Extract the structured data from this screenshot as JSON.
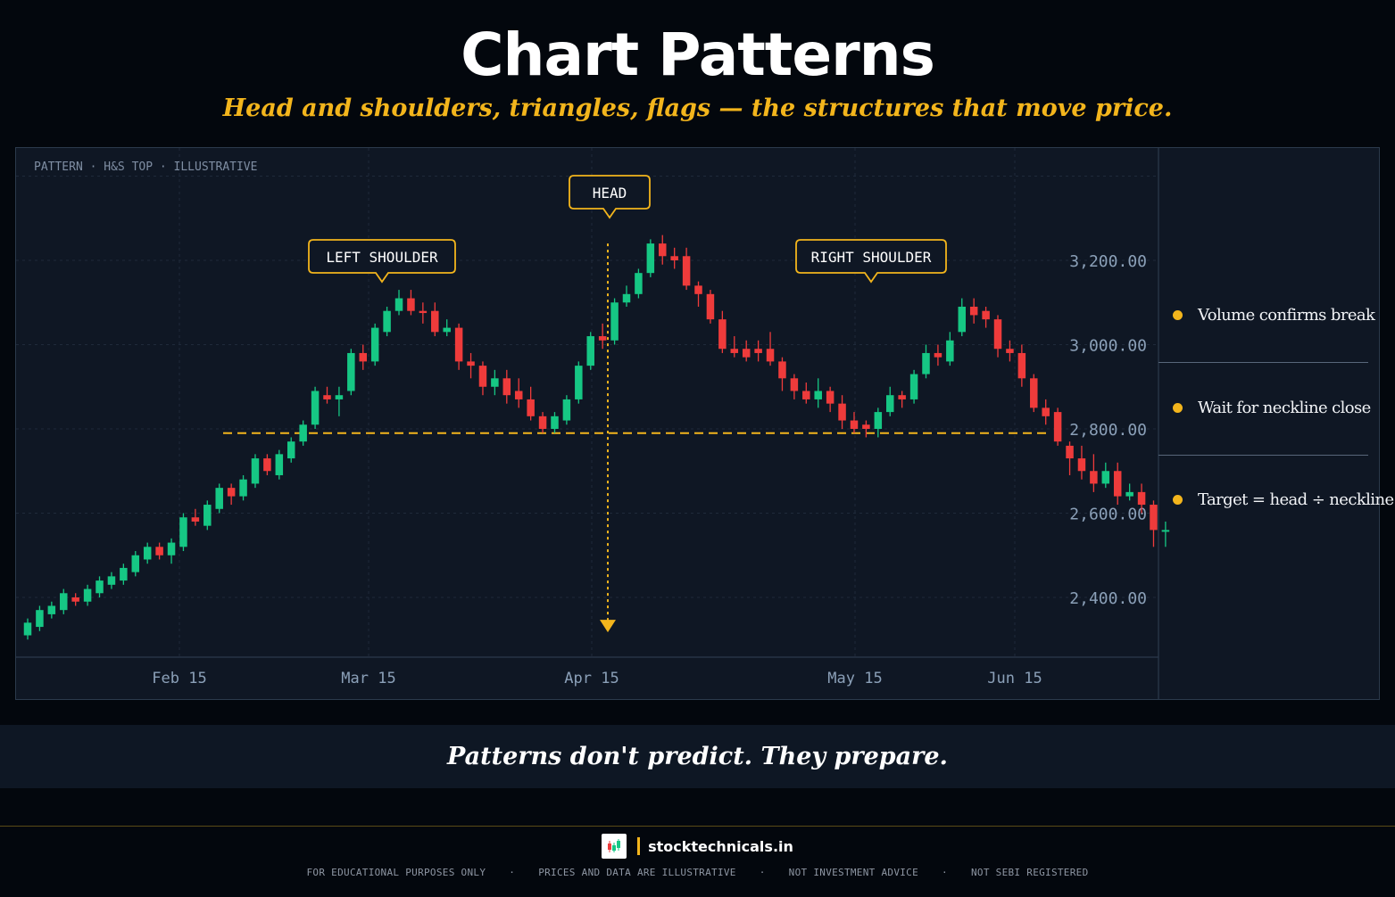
{
  "header": {
    "title": "Chart Patterns",
    "subtitle": "Head and shoulders, triangles, flags — the structures that move price."
  },
  "chart_data": {
    "type": "candlestick",
    "caption": "PATTERN · H&S TOP · ILLUSTRATIVE",
    "x_ticks": [
      "Feb 15",
      "Mar 15",
      "Apr 15",
      "May 15",
      "Jun 15"
    ],
    "y_ticks": [
      "3,200.00",
      "3,000.00",
      "2,800.00",
      "2,600.00",
      "2,400.00"
    ],
    "y_tick_values": [
      3200,
      3000,
      2800,
      2600,
      2400
    ],
    "ylim": [
      2300,
      3400
    ],
    "neckline": 2790,
    "target_arrow": {
      "from": 3240,
      "to": 2330
    },
    "annotations": [
      {
        "label": "LEFT SHOULDER",
        "index": 30,
        "price": 3150
      },
      {
        "label": "HEAD",
        "index": 50,
        "price": 3300
      },
      {
        "label": "RIGHT SHOULDER",
        "index": 74,
        "price": 3150
      }
    ],
    "candles": [
      [
        2310,
        2340,
        2300,
        2350
      ],
      [
        2330,
        2370,
        2320,
        2380
      ],
      [
        2360,
        2380,
        2350,
        2390
      ],
      [
        2370,
        2410,
        2360,
        2420
      ],
      [
        2400,
        2390,
        2380,
        2410
      ],
      [
        2390,
        2420,
        2380,
        2430
      ],
      [
        2410,
        2440,
        2400,
        2450
      ],
      [
        2430,
        2450,
        2420,
        2460
      ],
      [
        2440,
        2470,
        2430,
        2480
      ],
      [
        2460,
        2500,
        2450,
        2510
      ],
      [
        2490,
        2520,
        2480,
        2530
      ],
      [
        2520,
        2500,
        2490,
        2530
      ],
      [
        2500,
        2530,
        2480,
        2540
      ],
      [
        2520,
        2590,
        2510,
        2600
      ],
      [
        2590,
        2580,
        2570,
        2610
      ],
      [
        2570,
        2620,
        2560,
        2630
      ],
      [
        2610,
        2660,
        2600,
        2670
      ],
      [
        2660,
        2640,
        2620,
        2670
      ],
      [
        2640,
        2680,
        2630,
        2690
      ],
      [
        2670,
        2730,
        2660,
        2740
      ],
      [
        2730,
        2700,
        2690,
        2740
      ],
      [
        2690,
        2740,
        2680,
        2750
      ],
      [
        2730,
        2770,
        2720,
        2780
      ],
      [
        2770,
        2810,
        2760,
        2820
      ],
      [
        2810,
        2890,
        2800,
        2900
      ],
      [
        2880,
        2870,
        2860,
        2900
      ],
      [
        2870,
        2880,
        2830,
        2900
      ],
      [
        2890,
        2980,
        2880,
        2990
      ],
      [
        2980,
        2960,
        2940,
        3000
      ],
      [
        2960,
        3040,
        2950,
        3050
      ],
      [
        3030,
        3080,
        3020,
        3090
      ],
      [
        3080,
        3110,
        3070,
        3130
      ],
      [
        3110,
        3080,
        3070,
        3130
      ],
      [
        3080,
        3075,
        3050,
        3100
      ],
      [
        3080,
        3030,
        3020,
        3100
      ],
      [
        3030,
        3040,
        3020,
        3060
      ],
      [
        3040,
        2960,
        2940,
        3050
      ],
      [
        2960,
        2950,
        2920,
        2980
      ],
      [
        2950,
        2900,
        2880,
        2960
      ],
      [
        2900,
        2920,
        2880,
        2940
      ],
      [
        2920,
        2880,
        2860,
        2940
      ],
      [
        2890,
        2870,
        2850,
        2920
      ],
      [
        2870,
        2830,
        2820,
        2900
      ],
      [
        2830,
        2800,
        2790,
        2840
      ],
      [
        2800,
        2830,
        2790,
        2840
      ],
      [
        2820,
        2870,
        2810,
        2880
      ],
      [
        2870,
        2950,
        2860,
        2960
      ],
      [
        2950,
        3020,
        2940,
        3030
      ],
      [
        3020,
        3010,
        2990,
        3050
      ],
      [
        3010,
        3100,
        3000,
        3110
      ],
      [
        3100,
        3120,
        3090,
        3140
      ],
      [
        3120,
        3170,
        3110,
        3180
      ],
      [
        3170,
        3240,
        3160,
        3250
      ],
      [
        3240,
        3210,
        3190,
        3260
      ],
      [
        3210,
        3200,
        3180,
        3230
      ],
      [
        3210,
        3140,
        3130,
        3230
      ],
      [
        3140,
        3120,
        3090,
        3150
      ],
      [
        3120,
        3060,
        3050,
        3130
      ],
      [
        3060,
        2990,
        2980,
        3080
      ],
      [
        2990,
        2980,
        2970,
        3020
      ],
      [
        2990,
        2970,
        2960,
        3010
      ],
      [
        2990,
        2980,
        2960,
        3010
      ],
      [
        2990,
        2960,
        2950,
        3030
      ],
      [
        2960,
        2920,
        2890,
        2970
      ],
      [
        2920,
        2890,
        2870,
        2930
      ],
      [
        2890,
        2870,
        2860,
        2910
      ],
      [
        2870,
        2890,
        2850,
        2920
      ],
      [
        2890,
        2860,
        2840,
        2900
      ],
      [
        2860,
        2820,
        2800,
        2880
      ],
      [
        2820,
        2800,
        2790,
        2840
      ],
      [
        2810,
        2800,
        2780,
        2820
      ],
      [
        2800,
        2840,
        2780,
        2850
      ],
      [
        2840,
        2880,
        2830,
        2900
      ],
      [
        2880,
        2870,
        2850,
        2890
      ],
      [
        2870,
        2930,
        2860,
        2940
      ],
      [
        2930,
        2980,
        2920,
        3000
      ],
      [
        2980,
        2970,
        2950,
        3000
      ],
      [
        2960,
        3010,
        2950,
        3030
      ],
      [
        3030,
        3090,
        3020,
        3110
      ],
      [
        3090,
        3070,
        3050,
        3110
      ],
      [
        3080,
        3060,
        3040,
        3090
      ],
      [
        3060,
        2990,
        2970,
        3070
      ],
      [
        2990,
        2980,
        2960,
        3010
      ],
      [
        2980,
        2920,
        2900,
        3000
      ],
      [
        2920,
        2850,
        2840,
        2930
      ],
      [
        2850,
        2830,
        2810,
        2870
      ],
      [
        2840,
        2770,
        2760,
        2850
      ],
      [
        2760,
        2730,
        2690,
        2770
      ],
      [
        2730,
        2700,
        2680,
        2760
      ],
      [
        2700,
        2670,
        2650,
        2740
      ],
      [
        2670,
        2700,
        2660,
        2720
      ],
      [
        2700,
        2640,
        2620,
        2720
      ],
      [
        2640,
        2650,
        2630,
        2670
      ],
      [
        2650,
        2620,
        2600,
        2670
      ],
      [
        2620,
        2560,
        2520,
        2630
      ],
      [
        2560,
        2560,
        2520,
        2580
      ]
    ]
  },
  "notes": [
    {
      "text": "Volume confirms break"
    },
    {
      "text": "Wait for neckline close"
    },
    {
      "text": "Target = head ÷ neckline"
    }
  ],
  "quote": "Patterns don't predict. They prepare.",
  "footer": {
    "brand": "stocktechnicals.in",
    "disclaimers": [
      "FOR EDUCATIONAL PURPOSES ONLY",
      "PRICES AND DATA ARE ILLUSTRATIVE",
      "NOT INVESTMENT ADVICE",
      "NOT SEBI REGISTERED"
    ]
  },
  "colors": {
    "bull": "#16c784",
    "bear": "#ef3b3b",
    "accent": "#f3b51c",
    "panel": "#0f1724",
    "grid": "#1f2a3a",
    "axis_text": "#8ba0b8"
  }
}
